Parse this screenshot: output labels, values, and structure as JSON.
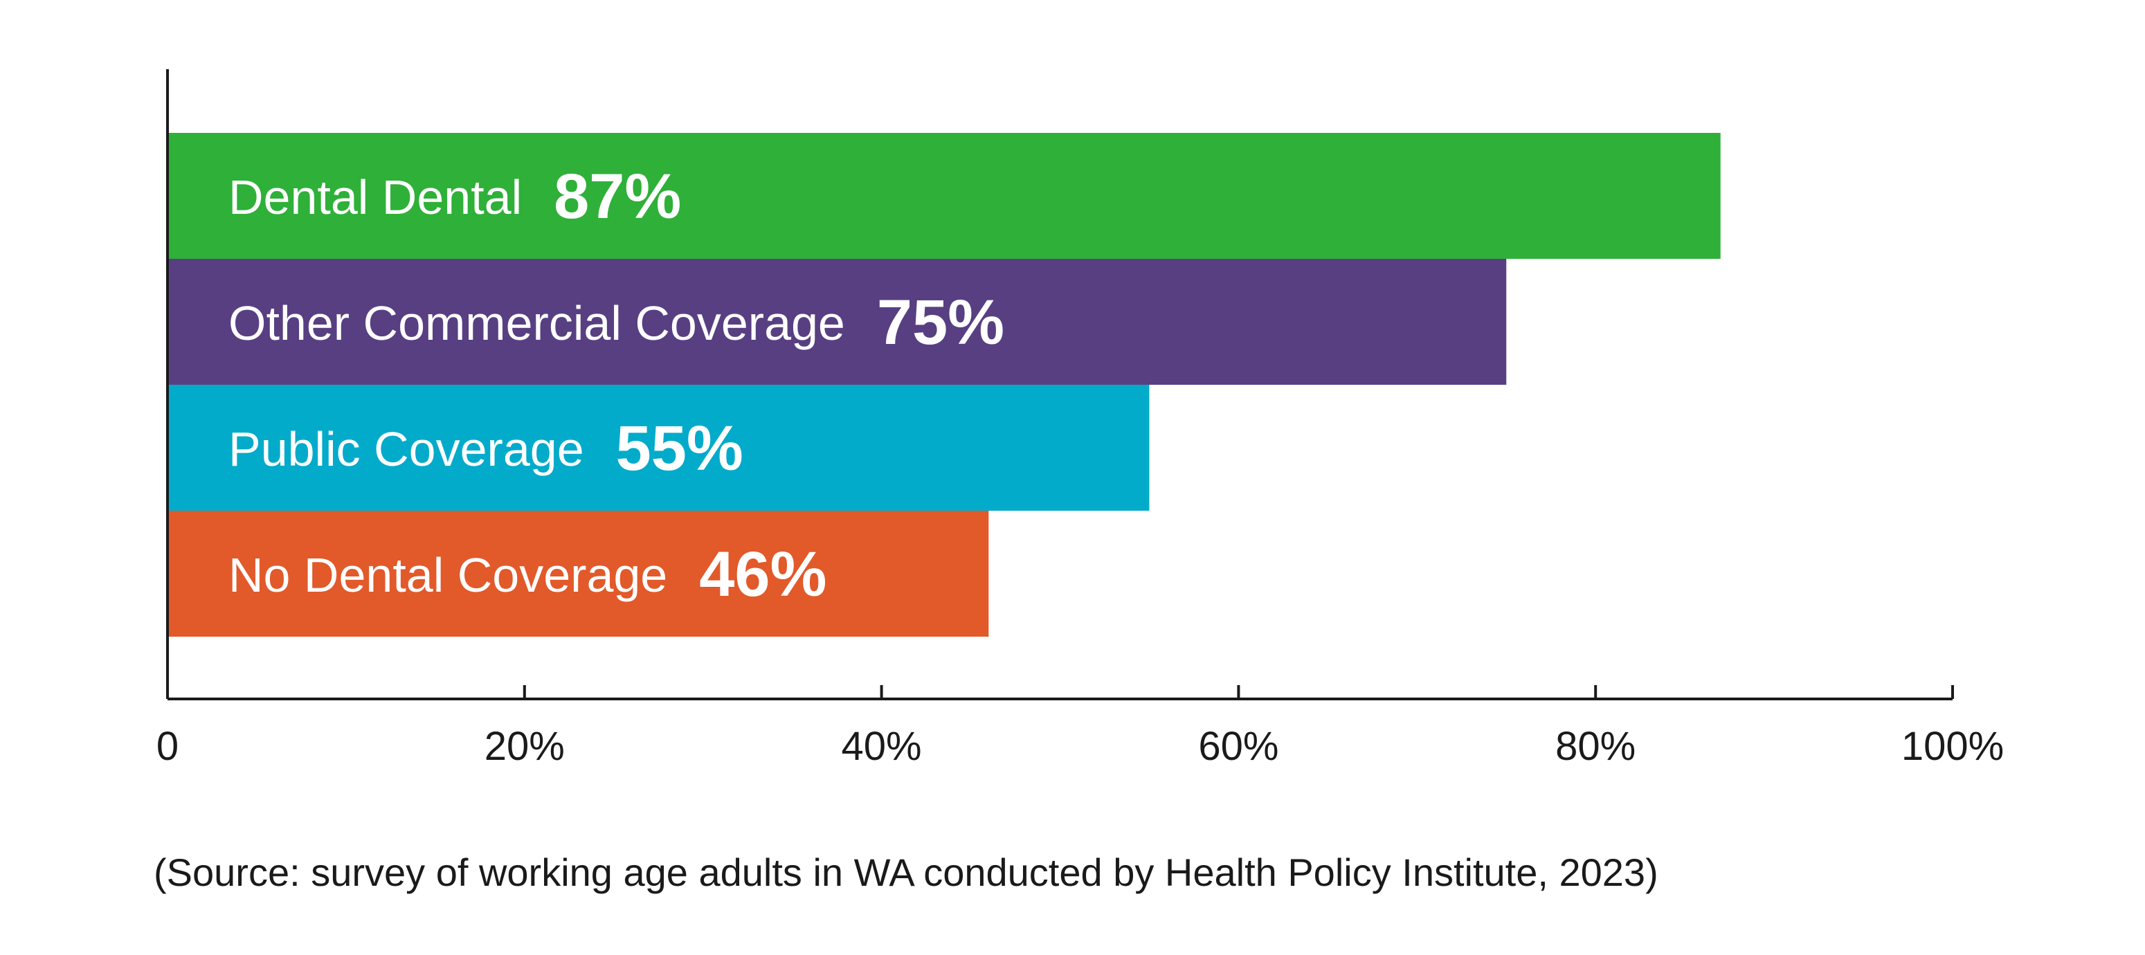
{
  "chart_data": {
    "type": "bar",
    "orientation": "horizontal",
    "title": "",
    "xlabel": "",
    "ylabel": "",
    "categories": [
      "Dental Dental",
      "Other Commercial Coverage",
      "Public Coverage",
      "No Dental Coverage"
    ],
    "values": [
      87,
      75,
      55,
      46
    ],
    "value_labels": [
      "87%",
      "75%",
      "55%",
      "46%"
    ],
    "colors": [
      "#2fb039",
      "#583f82",
      "#03abcb",
      "#e2592a"
    ],
    "xlim": [
      0,
      100
    ],
    "ticks": [
      0,
      20,
      40,
      60,
      80,
      100
    ],
    "tick_labels": [
      "0",
      "20%",
      "40%",
      "60%",
      "80%",
      "100%"
    ],
    "grid": false,
    "legend": "none",
    "source_note": "(Source: survey of working age adults in WA conducted by Health Policy Institute, 2023)"
  }
}
